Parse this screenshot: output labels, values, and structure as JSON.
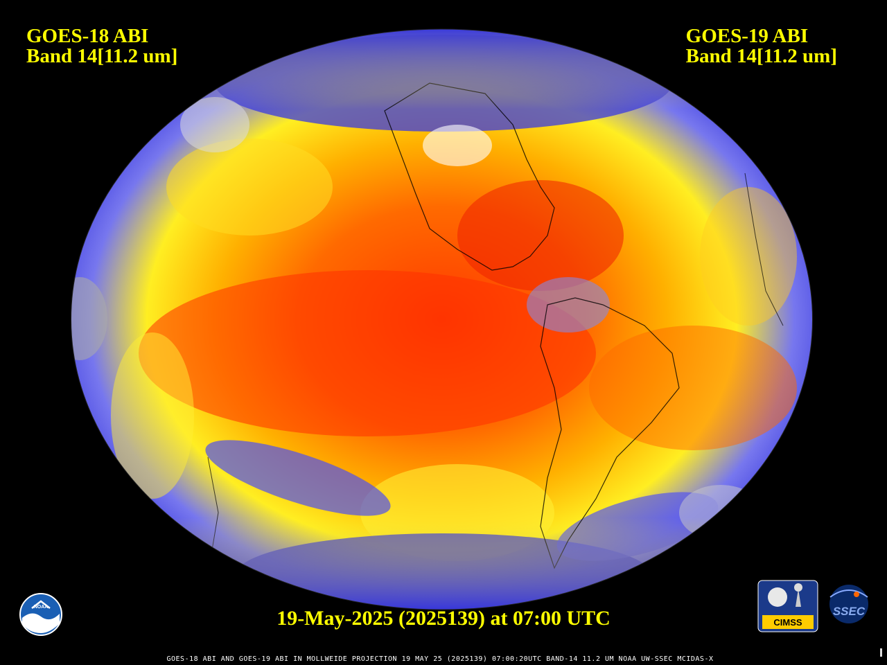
{
  "header": {
    "left_line1": "GOES-18 ABI",
    "left_line2": "Band 14[11.2 um]",
    "right_line1": "GOES-19 ABI",
    "right_line2": "Band 14[11.2 um]"
  },
  "timestamp": "19-May-2025 (2025139) at 07:00 UTC",
  "footer": "GOES-18 ABI AND GOES-19 ABI IN MOLLWEIDE PROJECTION 19 MAY 25 (2025139) 07:00:20UTC BAND-14 11.2 UM NOAA UW-SSEC MCIDAS-X",
  "logos": {
    "noaa": "NOAA",
    "cimss": "CIMSS",
    "ssec": "SSEC"
  },
  "colors": {
    "label_text": "#ffff00",
    "background": "#000000",
    "warm": "#ff2a00",
    "mid": "#ffa500",
    "cool": "#ffff33",
    "cold": "#2e2ee6",
    "coldest": "#ffffff"
  }
}
